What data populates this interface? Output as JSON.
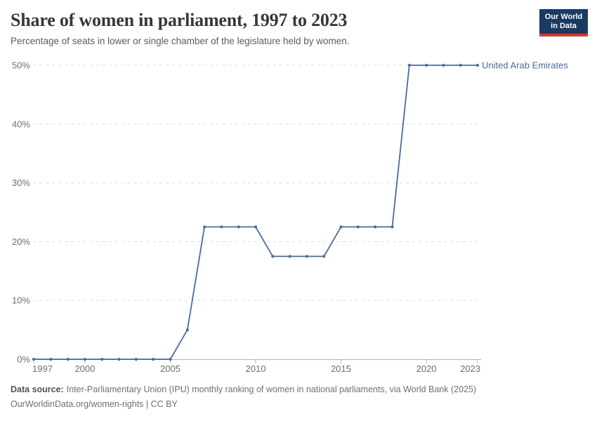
{
  "header": {
    "title": "Share of women in parliament, 1997 to 2023",
    "subtitle": "Percentage of seats in lower or single chamber of the legislature held by women.",
    "logo": {
      "line1": "Our World",
      "line2": "in Data"
    }
  },
  "chart_data": {
    "type": "line",
    "title": "Share of women in parliament, 1997 to 2023",
    "x": [
      1997,
      1998,
      1999,
      2000,
      2001,
      2002,
      2003,
      2004,
      2005,
      2006,
      2007,
      2008,
      2009,
      2010,
      2011,
      2012,
      2013,
      2014,
      2015,
      2016,
      2017,
      2018,
      2019,
      2020,
      2021,
      2022,
      2023
    ],
    "series": [
      {
        "name": "United Arab Emirates",
        "values": [
          0,
          0,
          0,
          0,
          0,
          0,
          0,
          0,
          0,
          5,
          22.5,
          22.5,
          22.5,
          22.5,
          17.5,
          17.5,
          17.5,
          17.5,
          22.5,
          22.5,
          22.5,
          22.5,
          50,
          50,
          50,
          50,
          50
        ]
      }
    ],
    "ylim": [
      0,
      50
    ],
    "xlim": [
      1997,
      2023
    ],
    "y_ticks": [
      0,
      10,
      20,
      30,
      40,
      50
    ],
    "y_tick_labels": [
      "0%",
      "10%",
      "20%",
      "30%",
      "40%",
      "50%"
    ],
    "x_ticks": [
      1997,
      2000,
      2005,
      2010,
      2015,
      2020,
      2023
    ],
    "x_tick_labels": [
      "1997",
      "2000",
      "2005",
      "2010",
      "2015",
      "2020",
      "2023"
    ],
    "grid": "horizontal-dashed",
    "legend_position": "end-of-line-label",
    "markers": true
  },
  "colors": {
    "line": "#4C6A9C",
    "entity_label": "#4C6A9C",
    "grid": "#dbdbdb",
    "axis": "#b3b3b3",
    "tick_text": "#6e6e6e",
    "logo_bg": "#1a3a5f",
    "logo_accent": "#d13a34"
  },
  "footer": {
    "data_source_label": "Data source:",
    "data_source_text": "Inter-Parliamentary Union (IPU) monthly ranking of women in national parliaments, via World Bank (2025)",
    "url_line": "OurWorldinData.org/women-rights | CC BY"
  }
}
